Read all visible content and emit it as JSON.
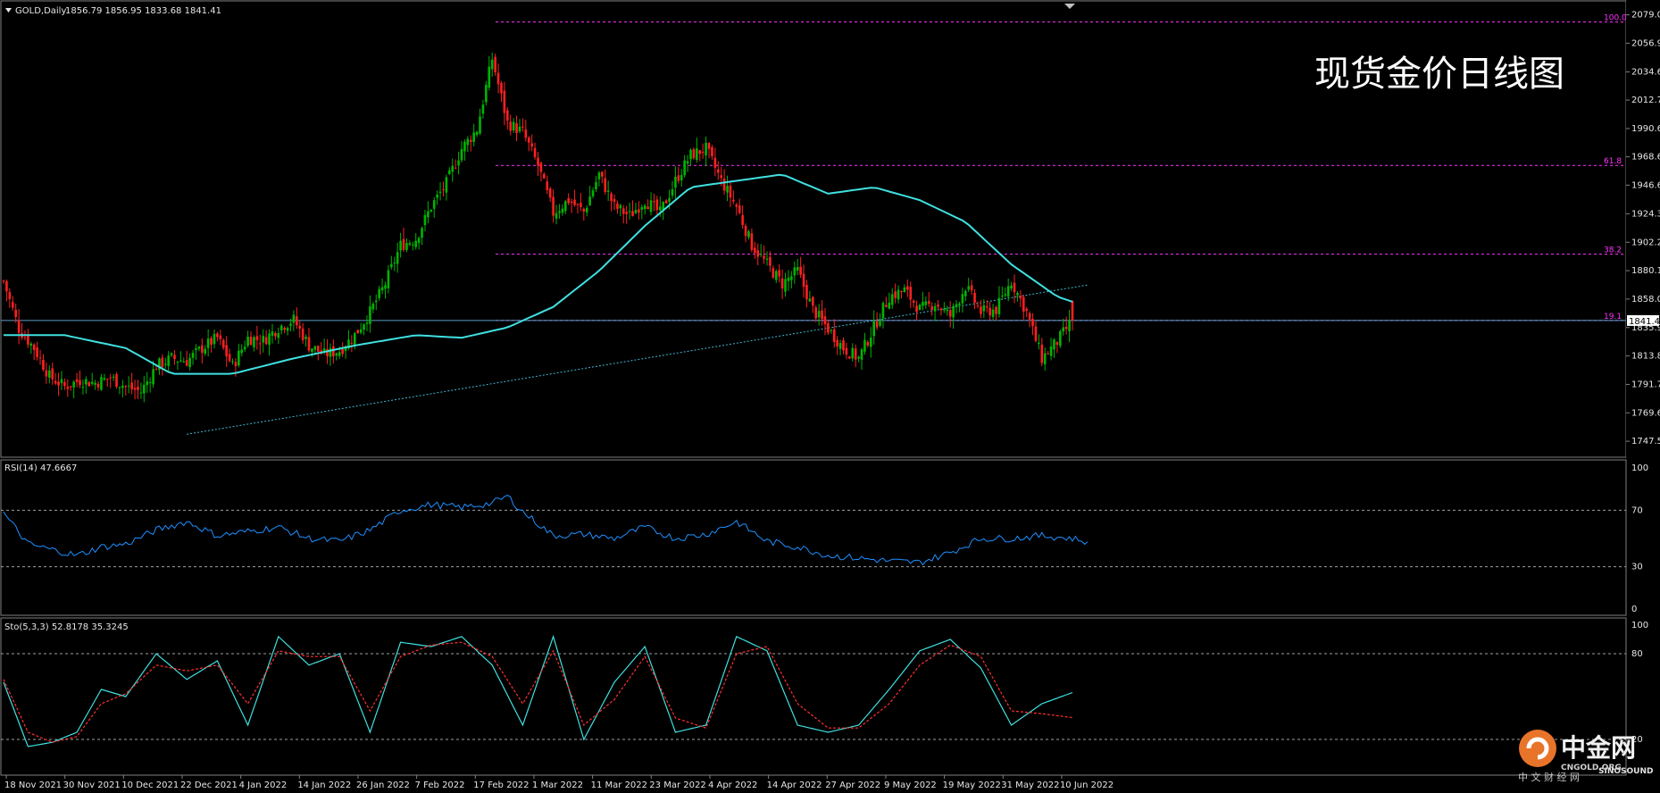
{
  "header": {
    "symbol": "GOLD,Daily",
    "ohlc": "1856.79 1856.95 1833.68 1841.41"
  },
  "title": "现货金价日线图",
  "price": {
    "current": "1841.41",
    "current_value": 1841.41,
    "range": [
      1740,
      2085
    ],
    "ticks": [
      "2079.05",
      "2056.95",
      "2034.65",
      "2012.75",
      "1990.65",
      "1968.65",
      "1946.65",
      "1924.35",
      "1902.25",
      "1880.15",
      "1858.05",
      "1835.95",
      "1813.85",
      "1791.75",
      "1769.65",
      "1747.55"
    ]
  },
  "fibonacci": [
    {
      "label": "100.0",
      "value": 2073.5
    },
    {
      "label": "61.8",
      "value": 1962.0
    },
    {
      "label": "38.2",
      "value": 1893.0
    },
    {
      "label": "19.1",
      "value": 1841.5
    }
  ],
  "rsi": {
    "label": "RSI(14) 47.6667",
    "levels": [
      "100",
      "70",
      "30",
      "0"
    ]
  },
  "stochastic": {
    "label": "Sto(5,3,3) 52.8178 35.3245",
    "levels": [
      "100",
      "80",
      "20"
    ]
  },
  "xaxis": {
    "labels": [
      "18 Nov 2021",
      "30 Nov 2021",
      "10 Dec 2021",
      "22 Dec 2021",
      "4 Jan 2022",
      "14 Jan 2022",
      "26 Jan 2022",
      "7 Feb 2022",
      "17 Feb 2022",
      "1 Mar 2022",
      "11 Mar 2022",
      "23 Mar 2022",
      "4 Apr 2022",
      "14 Apr 2022",
      "27 Apr 2022",
      "9 May 2022",
      "19 May 2022",
      "31 May 2022",
      "10 Jun 2022"
    ]
  },
  "logo": {
    "name": "中金网",
    "domain": "CNGOLD.ORG",
    "sub": "中 文 财 经 网",
    "brand": "SINOSOUND"
  },
  "colors": {
    "up": "#00b400",
    "down": "#ff2020",
    "ma": "#40e0e0",
    "fib": "#ff33ff",
    "rsi": "#1e90ff",
    "sto_main": "#40e0e0",
    "sto_signal": "#ff3030"
  },
  "chart_data": {
    "type": "candlestick",
    "symbol": "GOLD",
    "timeframe": "Daily",
    "ohlc_last": {
      "open": 1856.79,
      "high": 1856.95,
      "low": 1833.68,
      "close": 1841.41
    },
    "close_points": [
      [
        0,
        1872
      ],
      [
        5,
        1835
      ],
      [
        10,
        1820
      ],
      [
        15,
        1798
      ],
      [
        20,
        1790
      ],
      [
        25,
        1795
      ],
      [
        30,
        1793
      ],
      [
        35,
        1797
      ],
      [
        40,
        1790
      ],
      [
        45,
        1786
      ],
      [
        50,
        1806
      ],
      [
        55,
        1812
      ],
      [
        60,
        1810
      ],
      [
        65,
        1820
      ],
      [
        70,
        1828
      ],
      [
        75,
        1806
      ],
      [
        80,
        1828
      ],
      [
        85,
        1826
      ],
      [
        90,
        1836
      ],
      [
        95,
        1842
      ],
      [
        100,
        1822
      ],
      [
        105,
        1815
      ],
      [
        110,
        1818
      ],
      [
        115,
        1830
      ],
      [
        120,
        1848
      ],
      [
        125,
        1870
      ],
      [
        130,
        1900
      ],
      [
        135,
        1905
      ],
      [
        140,
        1930
      ],
      [
        145,
        1948
      ],
      [
        150,
        1975
      ],
      [
        155,
        1990
      ],
      [
        160,
        2045
      ],
      [
        165,
        1995
      ],
      [
        170,
        1988
      ],
      [
        175,
        1962
      ],
      [
        180,
        1925
      ],
      [
        185,
        1935
      ],
      [
        190,
        1926
      ],
      [
        195,
        1955
      ],
      [
        200,
        1930
      ],
      [
        205,
        1923
      ],
      [
        210,
        1935
      ],
      [
        215,
        1925
      ],
      [
        220,
        1950
      ],
      [
        225,
        1970
      ],
      [
        230,
        1975
      ],
      [
        235,
        1950
      ],
      [
        240,
        1930
      ],
      [
        245,
        1900
      ],
      [
        250,
        1885
      ],
      [
        255,
        1870
      ],
      [
        260,
        1880
      ],
      [
        265,
        1850
      ],
      [
        270,
        1835
      ],
      [
        275,
        1820
      ],
      [
        280,
        1812
      ],
      [
        285,
        1836
      ],
      [
        290,
        1860
      ],
      [
        295,
        1865
      ],
      [
        300,
        1850
      ],
      [
        305,
        1855
      ],
      [
        310,
        1845
      ],
      [
        315,
        1868
      ],
      [
        320,
        1848
      ],
      [
        325,
        1850
      ],
      [
        330,
        1872
      ],
      [
        335,
        1848
      ],
      [
        340,
        1812
      ],
      [
        345,
        1825
      ],
      [
        350,
        1841.41
      ]
    ],
    "ma_points": [
      [
        0,
        1830
      ],
      [
        20,
        1830
      ],
      [
        40,
        1820
      ],
      [
        55,
        1800
      ],
      [
        75,
        1800
      ],
      [
        95,
        1812
      ],
      [
        115,
        1822
      ],
      [
        135,
        1830
      ],
      [
        150,
        1828
      ],
      [
        165,
        1836
      ],
      [
        180,
        1852
      ],
      [
        195,
        1880
      ],
      [
        210,
        1915
      ],
      [
        225,
        1945
      ],
      [
        240,
        1950
      ],
      [
        255,
        1955
      ],
      [
        270,
        1940
      ],
      [
        285,
        1945
      ],
      [
        300,
        1935
      ],
      [
        315,
        1918
      ],
      [
        330,
        1885
      ],
      [
        345,
        1860
      ],
      [
        360,
        1848
      ],
      [
        375,
        1844
      ],
      [
        390,
        1846
      ],
      [
        410,
        1848
      ]
    ],
    "rsi_points": [
      [
        0,
        68
      ],
      [
        8,
        46
      ],
      [
        16,
        42
      ],
      [
        24,
        38
      ],
      [
        32,
        44
      ],
      [
        40,
        46
      ],
      [
        50,
        56
      ],
      [
        60,
        62
      ],
      [
        70,
        52
      ],
      [
        80,
        55
      ],
      [
        90,
        58
      ],
      [
        100,
        50
      ],
      [
        110,
        48
      ],
      [
        120,
        56
      ],
      [
        130,
        70
      ],
      [
        140,
        74
      ],
      [
        150,
        72
      ],
      [
        160,
        75
      ],
      [
        165,
        80
      ],
      [
        170,
        69
      ],
      [
        180,
        52
      ],
      [
        190,
        53
      ],
      [
        200,
        50
      ],
      [
        210,
        58
      ],
      [
        220,
        50
      ],
      [
        230,
        53
      ],
      [
        240,
        62
      ],
      [
        250,
        48
      ],
      [
        260,
        44
      ],
      [
        270,
        38
      ],
      [
        280,
        36
      ],
      [
        290,
        34
      ],
      [
        300,
        33
      ],
      [
        310,
        40
      ],
      [
        320,
        50
      ],
      [
        330,
        50
      ],
      [
        340,
        52
      ],
      [
        350,
        50
      ],
      [
        355,
        47.7
      ]
    ],
    "rsi_range": [
      0,
      100
    ],
    "sto_main_points": [
      [
        0,
        60
      ],
      [
        8,
        15
      ],
      [
        16,
        18
      ],
      [
        24,
        25
      ],
      [
        32,
        55
      ],
      [
        40,
        50
      ],
      [
        50,
        80
      ],
      [
        60,
        62
      ],
      [
        70,
        75
      ],
      [
        80,
        30
      ],
      [
        90,
        92
      ],
      [
        100,
        72
      ],
      [
        110,
        80
      ],
      [
        120,
        25
      ],
      [
        130,
        88
      ],
      [
        140,
        85
      ],
      [
        150,
        92
      ],
      [
        160,
        72
      ],
      [
        170,
        30
      ],
      [
        180,
        92
      ],
      [
        190,
        20
      ],
      [
        200,
        60
      ],
      [
        210,
        85
      ],
      [
        220,
        25
      ],
      [
        230,
        30
      ],
      [
        240,
        92
      ],
      [
        250,
        82
      ],
      [
        260,
        30
      ],
      [
        270,
        25
      ],
      [
        280,
        30
      ],
      [
        290,
        55
      ],
      [
        300,
        82
      ],
      [
        310,
        90
      ],
      [
        320,
        70
      ],
      [
        330,
        30
      ],
      [
        340,
        45
      ],
      [
        350,
        52.8
      ]
    ],
    "sto_signal_points": [
      [
        0,
        62
      ],
      [
        8,
        25
      ],
      [
        16,
        18
      ],
      [
        24,
        22
      ],
      [
        32,
        45
      ],
      [
        40,
        52
      ],
      [
        50,
        72
      ],
      [
        60,
        68
      ],
      [
        70,
        72
      ],
      [
        80,
        45
      ],
      [
        90,
        82
      ],
      [
        100,
        78
      ],
      [
        110,
        78
      ],
      [
        120,
        40
      ],
      [
        130,
        78
      ],
      [
        140,
        86
      ],
      [
        150,
        88
      ],
      [
        160,
        78
      ],
      [
        170,
        45
      ],
      [
        180,
        82
      ],
      [
        190,
        30
      ],
      [
        200,
        48
      ],
      [
        210,
        78
      ],
      [
        220,
        35
      ],
      [
        230,
        28
      ],
      [
        240,
        80
      ],
      [
        250,
        85
      ],
      [
        260,
        45
      ],
      [
        270,
        28
      ],
      [
        280,
        28
      ],
      [
        290,
        45
      ],
      [
        300,
        72
      ],
      [
        310,
        86
      ],
      [
        320,
        78
      ],
      [
        330,
        40
      ],
      [
        340,
        38
      ],
      [
        350,
        35.3
      ]
    ],
    "sto_range": [
      0,
      100
    ],
    "trendline": {
      "start": [
        60,
        1753
      ],
      "end": [
        355,
        1869
      ]
    }
  }
}
